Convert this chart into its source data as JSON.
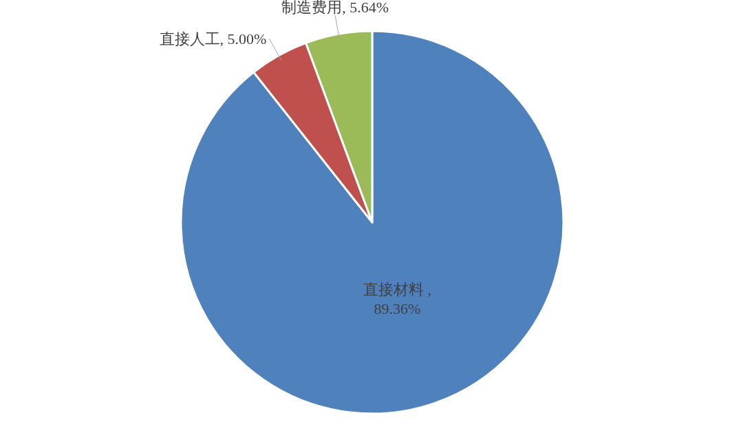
{
  "chart_data": {
    "type": "pie",
    "categories": [
      "直接材料",
      "直接人工",
      "制造费用"
    ],
    "values": [
      89.36,
      5.0,
      5.64
    ],
    "value_labels": [
      ", 89.36%",
      ", 5.00%",
      ", 5.64%"
    ],
    "colors": [
      "#4f81bd",
      "#c0504d",
      "#9bbb59"
    ]
  }
}
